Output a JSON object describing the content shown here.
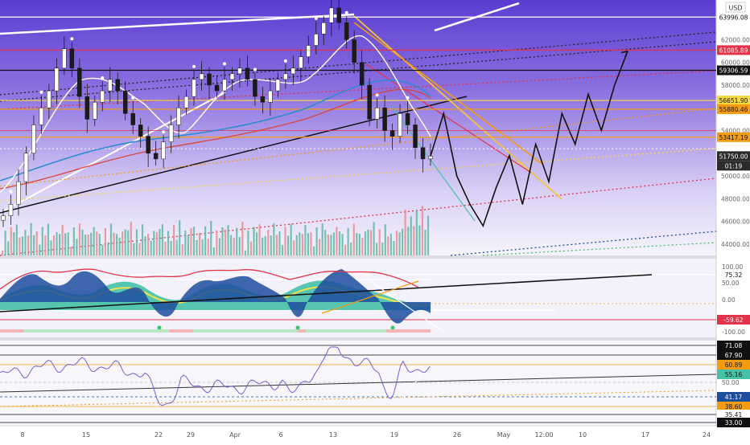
{
  "header": {
    "currency": "USD"
  },
  "colors": {
    "bg_top": "#5b3fd0",
    "bg_bottom": "#f4f2fb",
    "sub_bg": "#f3f1fa",
    "red_line": "#e2334a",
    "orange_line": "#f39c12",
    "yellow_line": "#f5d742",
    "white_line": "#ffffff",
    "black_line": "#111111",
    "rsi_line": "#7b5cd6",
    "osc_blue": "#1d4e9e",
    "osc_teal": "#46c1a8",
    "osc_yellow": "#f2e14a",
    "green_dotted": "#3ec46d"
  },
  "price_axis": {
    "ticks": [
      "62000.00",
      "60000.00",
      "58000.00",
      "54000.00",
      "50000.00",
      "48000.00",
      "46000.00",
      "44000.00"
    ],
    "tags": [
      {
        "label": "63996.08",
        "bg": "#ffffff",
        "fg": "#111111",
        "value": 63996.08
      },
      {
        "label": "61085.89",
        "bg": "#e2334a",
        "fg": "#ffffff",
        "value": 61085.89
      },
      {
        "label": "59306.59",
        "bg": "#111111",
        "fg": "#ffffff",
        "value": 59306.59
      },
      {
        "label": "56651.90",
        "bg": "#f5d742",
        "fg": "#111111",
        "value": 56651.9
      },
      {
        "label": "55880.46",
        "bg": "#f39c12",
        "fg": "#111111",
        "value": 55880.46
      },
      {
        "label": "53417.19",
        "bg": "#f39c12",
        "fg": "#111111",
        "value": 53417.19
      },
      {
        "label": "51750.00",
        "bg": "#2b2b2b",
        "fg": "#ffffff",
        "value": 51750.0
      },
      {
        "label": "01:19",
        "bg": "#2b2b2b",
        "fg": "#ffffff",
        "value": null
      }
    ]
  },
  "osc_axis": {
    "ticks": [
      "100.00",
      "50.00",
      "0.00",
      "-100.00"
    ],
    "tags": [
      {
        "label": "75.32",
        "bg": "#ffffff",
        "fg": "#111111",
        "value": 75.32
      },
      {
        "label": "-59.62",
        "bg": "#e2334a",
        "fg": "#ffffff",
        "value": -59.62
      }
    ]
  },
  "rsi_axis": {
    "ticks": [
      "50.00"
    ],
    "tags": [
      {
        "label": "71.08",
        "bg": "#111111",
        "fg": "#ffffff",
        "value": 71.08
      },
      {
        "label": "67.90",
        "bg": "#111111",
        "fg": "#ffffff",
        "value": 67.9
      },
      {
        "label": "60.89",
        "bg": "#f39c12",
        "fg": "#111111",
        "value": 60.89
      },
      {
        "label": "55.16",
        "bg": "#46c1a8",
        "fg": "#111111",
        "value": 55.16
      },
      {
        "label": "41.17",
        "bg": "#1d4e9e",
        "fg": "#ffffff",
        "value": 41.17
      },
      {
        "label": "38.60",
        "bg": "#f39c12",
        "fg": "#111111",
        "value": 38.6
      },
      {
        "label": "35.41",
        "bg": "#ffffff",
        "fg": "#111111",
        "value": 35.41
      },
      {
        "label": "33.00",
        "bg": "#111111",
        "fg": "#ffffff",
        "value": 33.0
      }
    ]
  },
  "time_axis": {
    "labels": [
      "8",
      "15",
      "22",
      "29",
      "Apr",
      "6",
      "13",
      "19",
      "26",
      "May",
      "12:00",
      "10",
      "17",
      "24"
    ]
  },
  "chart_data": {
    "type": "line",
    "series": [
      {
        "values": [
          46500,
          47500,
          49500,
          52000,
          54500,
          56000,
          57500,
          59500,
          61200,
          59500,
          57000,
          55000,
          56500,
          57500,
          58500,
          57500,
          55500,
          54500,
          53500,
          52000,
          51500,
          53000,
          54500,
          56000,
          57000,
          58500,
          59000,
          58000,
          57500,
          58500,
          59000,
          59500,
          58500,
          57000,
          56500,
          57500,
          58500,
          59000,
          59500,
          60500,
          61500,
          62500,
          63500,
          64800,
          63500,
          62000,
          60000,
          58000,
          55000,
          56000,
          54000,
          53500,
          55500,
          54500,
          52500,
          51500,
          51750
        ]
      },
      {
        "values": [
          51750,
          55500,
          50000,
          47500,
          45600,
          49000,
          51800,
          47500,
          52800,
          49500,
          55500,
          52800,
          57200,
          54000,
          58000,
          61000
        ]
      }
    ],
    "ylim": [
      43000,
      65500
    ]
  }
}
